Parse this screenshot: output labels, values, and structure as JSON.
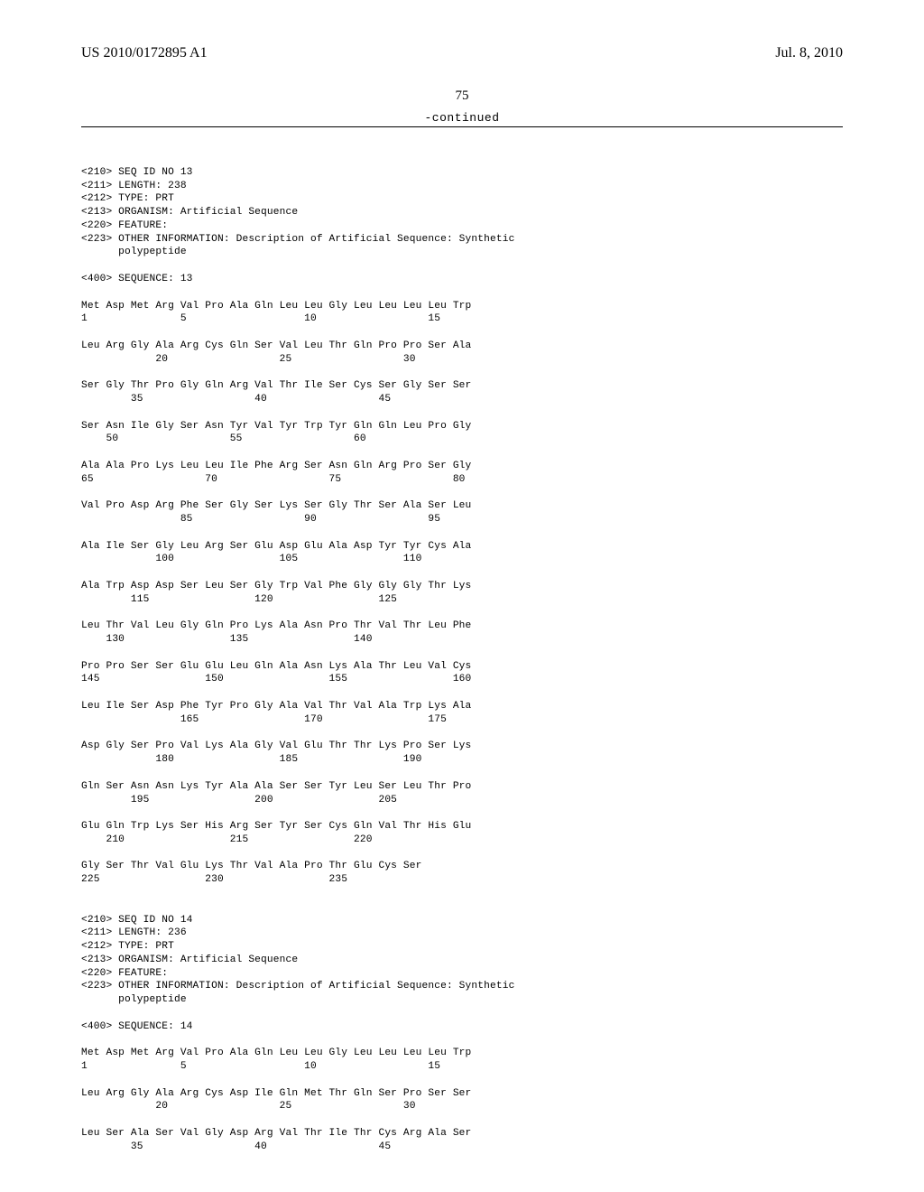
{
  "header": {
    "left": "US 2010/0172895 A1",
    "right": "Jul. 8, 2010"
  },
  "page_number": "75",
  "continued": "-continued",
  "seq13": {
    "meta1": "<210> SEQ ID NO 13",
    "meta2": "<211> LENGTH: 238",
    "meta3": "<212> TYPE: PRT",
    "meta4": "<213> ORGANISM: Artificial Sequence",
    "meta5": "<220> FEATURE:",
    "meta6": "<223> OTHER INFORMATION: Description of Artificial Sequence: Synthetic",
    "meta7": "      polypeptide",
    "meta8": "<400> SEQUENCE: 13",
    "r1a": "Met Asp Met Arg Val Pro Ala Gln Leu Leu Gly Leu Leu Leu Leu Trp",
    "r1b": "1               5                   10                  15",
    "r2a": "Leu Arg Gly Ala Arg Cys Gln Ser Val Leu Thr Gln Pro Pro Ser Ala",
    "r2b": "            20                  25                  30",
    "r3a": "Ser Gly Thr Pro Gly Gln Arg Val Thr Ile Ser Cys Ser Gly Ser Ser",
    "r3b": "        35                  40                  45",
    "r4a": "Ser Asn Ile Gly Ser Asn Tyr Val Tyr Trp Tyr Gln Gln Leu Pro Gly",
    "r4b": "    50                  55                  60",
    "r5a": "Ala Ala Pro Lys Leu Leu Ile Phe Arg Ser Asn Gln Arg Pro Ser Gly",
    "r5b": "65                  70                  75                  80",
    "r6a": "Val Pro Asp Arg Phe Ser Gly Ser Lys Ser Gly Thr Ser Ala Ser Leu",
    "r6b": "                85                  90                  95",
    "r7a": "Ala Ile Ser Gly Leu Arg Ser Glu Asp Glu Ala Asp Tyr Tyr Cys Ala",
    "r7b": "            100                 105                 110",
    "r8a": "Ala Trp Asp Asp Ser Leu Ser Gly Trp Val Phe Gly Gly Gly Thr Lys",
    "r8b": "        115                 120                 125",
    "r9a": "Leu Thr Val Leu Gly Gln Pro Lys Ala Asn Pro Thr Val Thr Leu Phe",
    "r9b": "    130                 135                 140",
    "r10a": "Pro Pro Ser Ser Glu Glu Leu Gln Ala Asn Lys Ala Thr Leu Val Cys",
    "r10b": "145                 150                 155                 160",
    "r11a": "Leu Ile Ser Asp Phe Tyr Pro Gly Ala Val Thr Val Ala Trp Lys Ala",
    "r11b": "                165                 170                 175",
    "r12a": "Asp Gly Ser Pro Val Lys Ala Gly Val Glu Thr Thr Lys Pro Ser Lys",
    "r12b": "            180                 185                 190",
    "r13a": "Gln Ser Asn Asn Lys Tyr Ala Ala Ser Ser Tyr Leu Ser Leu Thr Pro",
    "r13b": "        195                 200                 205",
    "r14a": "Glu Gln Trp Lys Ser His Arg Ser Tyr Ser Cys Gln Val Thr His Glu",
    "r14b": "    210                 215                 220",
    "r15a": "Gly Ser Thr Val Glu Lys Thr Val Ala Pro Thr Glu Cys Ser",
    "r15b": "225                 230                 235"
  },
  "seq14": {
    "meta1": "<210> SEQ ID NO 14",
    "meta2": "<211> LENGTH: 236",
    "meta3": "<212> TYPE: PRT",
    "meta4": "<213> ORGANISM: Artificial Sequence",
    "meta5": "<220> FEATURE:",
    "meta6": "<223> OTHER INFORMATION: Description of Artificial Sequence: Synthetic",
    "meta7": "      polypeptide",
    "meta8": "<400> SEQUENCE: 14",
    "r1a": "Met Asp Met Arg Val Pro Ala Gln Leu Leu Gly Leu Leu Leu Leu Trp",
    "r1b": "1               5                   10                  15",
    "r2a": "Leu Arg Gly Ala Arg Cys Asp Ile Gln Met Thr Gln Ser Pro Ser Ser",
    "r2b": "            20                  25                  30",
    "r3a": "Leu Ser Ala Ser Val Gly Asp Arg Val Thr Ile Thr Cys Arg Ala Ser",
    "r3b": "        35                  40                  45"
  }
}
